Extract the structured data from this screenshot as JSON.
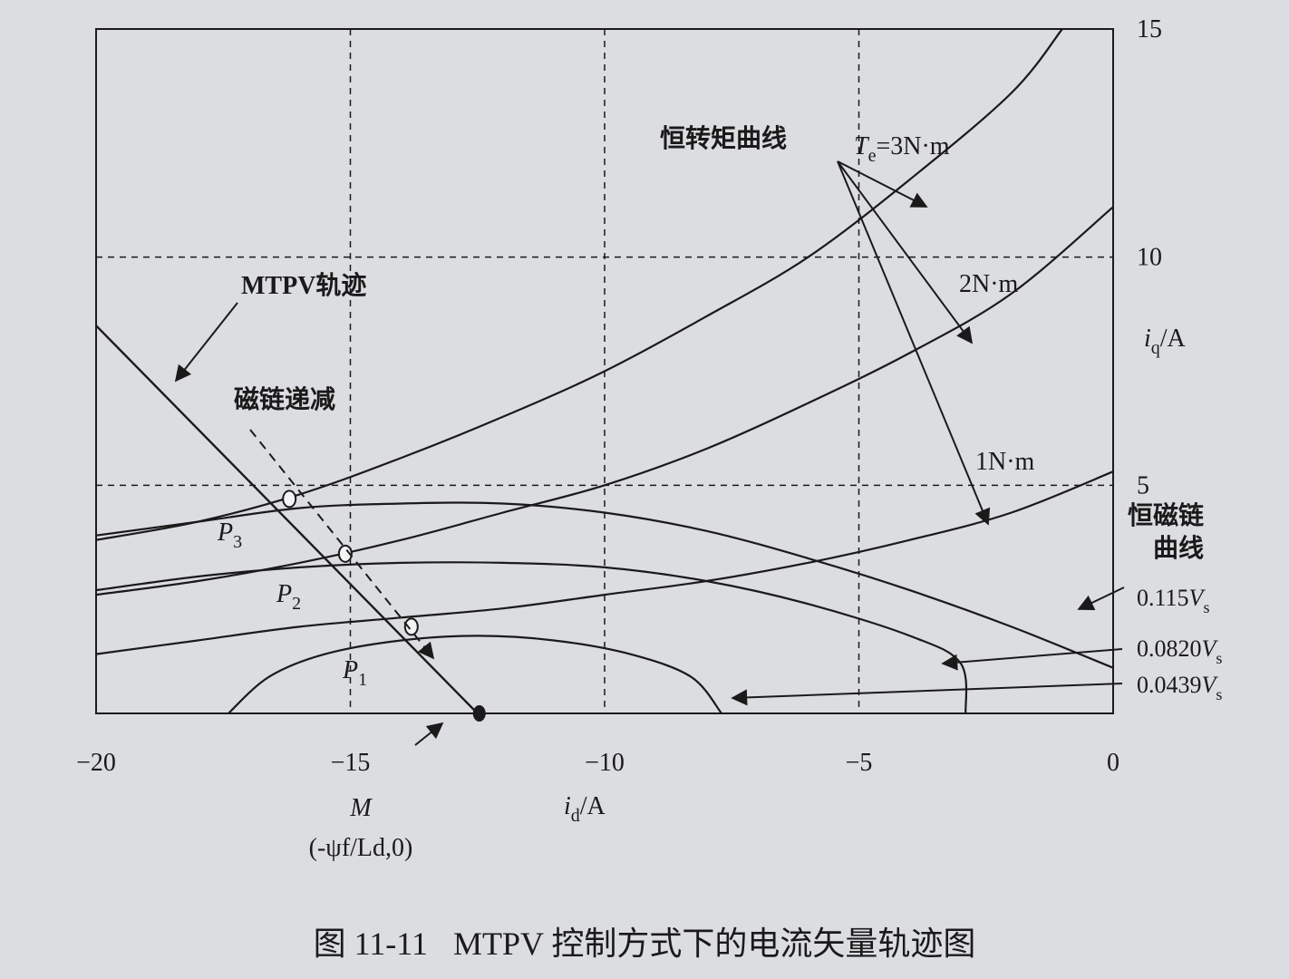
{
  "chart_data": {
    "type": "line",
    "xlabel": "i_d/A",
    "ylabel": "i_q/A",
    "xlim": [
      -20,
      0
    ],
    "ylim": [
      0,
      15
    ],
    "x_ticks": [
      "-20",
      "-15",
      "-10",
      "-5",
      "0"
    ],
    "y_ticks": [
      "5",
      "10",
      "15"
    ],
    "grid": "dashed at x=-15,-10,-5 and y=5,10",
    "torque_curves_title": "恒转矩曲线",
    "torque_curves": [
      {
        "label": "Te=3N·m",
        "points": [
          [
            -20,
            3.8
          ],
          [
            -18,
            4.2
          ],
          [
            -16,
            4.8
          ],
          [
            -14,
            5.6
          ],
          [
            -12,
            6.5
          ],
          [
            -10,
            7.5
          ],
          [
            -8,
            8.7
          ],
          [
            -6,
            10.0
          ],
          [
            -4,
            11.7
          ],
          [
            -2,
            13.6
          ],
          [
            -1,
            15.0
          ]
        ]
      },
      {
        "label": "2N·m",
        "points": [
          [
            -20,
            2.6
          ],
          [
            -18,
            2.9
          ],
          [
            -16,
            3.3
          ],
          [
            -14,
            3.8
          ],
          [
            -12,
            4.4
          ],
          [
            -10,
            5.0
          ],
          [
            -8,
            5.8
          ],
          [
            -6,
            6.8
          ],
          [
            -4,
            7.9
          ],
          [
            -2,
            9.2
          ],
          [
            0,
            11.1
          ]
        ]
      },
      {
        "label": "1N·m",
        "points": [
          [
            -20,
            1.3
          ],
          [
            -18,
            1.6
          ],
          [
            -16,
            1.9
          ],
          [
            -14,
            2.1
          ],
          [
            -12,
            2.3
          ],
          [
            -10,
            2.6
          ],
          [
            -8,
            2.9
          ],
          [
            -6,
            3.3
          ],
          [
            -4,
            3.8
          ],
          [
            -2,
            4.4
          ],
          [
            0,
            5.3
          ]
        ]
      }
    ],
    "flux_curves_title": "恒磁链曲线",
    "flux_curves": [
      {
        "label": "0.115Vs",
        "points": [
          [
            -20,
            3.9
          ],
          [
            -18,
            4.2
          ],
          [
            -16,
            4.5
          ],
          [
            -14,
            4.6
          ],
          [
            -12,
            4.6
          ],
          [
            -10,
            4.4
          ],
          [
            -8,
            4.0
          ],
          [
            -6,
            3.4
          ],
          [
            -4,
            2.7
          ],
          [
            -2,
            1.9
          ],
          [
            0,
            1.0
          ]
        ]
      },
      {
        "label": "0.0820Vs",
        "points": [
          [
            -20,
            2.7
          ],
          [
            -18,
            3.0
          ],
          [
            -16,
            3.2
          ],
          [
            -14,
            3.3
          ],
          [
            -12,
            3.3
          ],
          [
            -10,
            3.2
          ],
          [
            -8,
            2.9
          ],
          [
            -6,
            2.4
          ],
          [
            -4,
            1.7
          ],
          [
            -3,
            1.1
          ],
          [
            -2.9,
            0
          ]
        ]
      },
      {
        "label": "0.0439Vs",
        "points": [
          [
            -17.4,
            0
          ],
          [
            -16.6,
            0.8
          ],
          [
            -15.5,
            1.3
          ],
          [
            -14,
            1.6
          ],
          [
            -12.5,
            1.7
          ],
          [
            -11,
            1.6
          ],
          [
            -9.5,
            1.3
          ],
          [
            -8.3,
            0.8
          ],
          [
            -7.7,
            0
          ]
        ]
      }
    ],
    "mtpv_label": "MTPV轨迹",
    "mtpv": [
      [
        -20,
        8.5
      ],
      [
        -12.5,
        0
      ]
    ],
    "flux_decrease_label": "磁链递减",
    "operating_points": [
      {
        "label": "P3",
        "id": -16.2,
        "iq": 4.7
      },
      {
        "label": "P2",
        "id": -15.1,
        "iq": 3.5
      },
      {
        "label": "P1",
        "id": -13.8,
        "iq": 1.9
      }
    ],
    "point_M": {
      "label": "M",
      "sublabel": "(-ψf/Ld,0)",
      "id": -12.5,
      "iq": 0
    },
    "te_label_prefix": "T",
    "te_label_sub": "e",
    "te_label_suffix": "=3N·m"
  },
  "caption": {
    "number": "图 11-11",
    "text": "MTPV 控制方式下的电流矢量轨迹图"
  }
}
